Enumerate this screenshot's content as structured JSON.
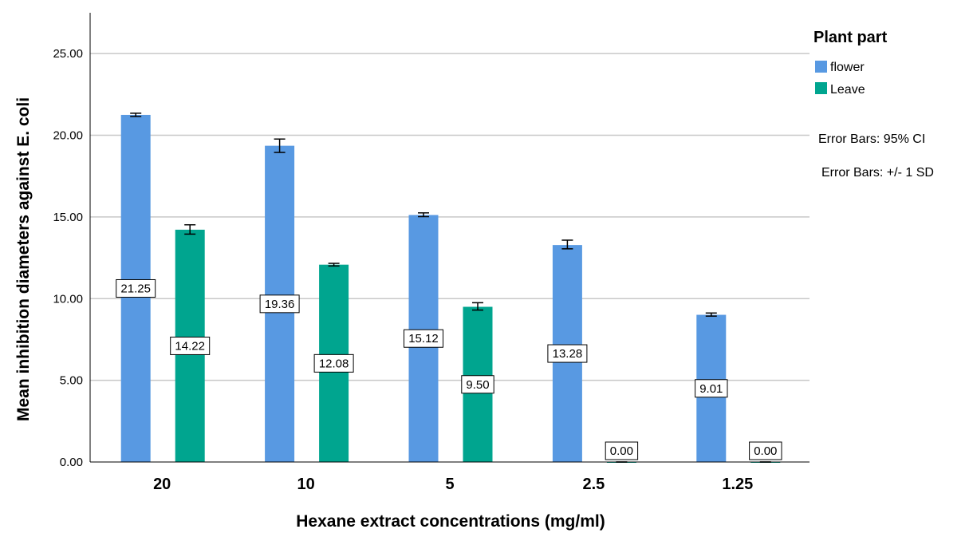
{
  "chart_data": {
    "type": "bar",
    "title": "",
    "xlabel": "Hexane extract concentrations (mg/ml)",
    "ylabel": "Mean inhibition diameters against E. coli",
    "categories": [
      "20",
      "10",
      "5",
      "2.5",
      "1.25"
    ],
    "ylim": [
      0,
      27.5
    ],
    "yticks": [
      "0.00",
      "5.00",
      "10.00",
      "15.00",
      "20.00",
      "25.00"
    ],
    "grid": true,
    "legend": {
      "title": "Plant part",
      "placement": "right",
      "entries": [
        "flower",
        "Leave"
      ]
    },
    "notes": [
      "Error Bars: 95% CI",
      "Error Bars: +/- 1 SD"
    ],
    "series": [
      {
        "name": "flower",
        "color": "#5899e2",
        "values": [
          21.25,
          19.36,
          15.12,
          13.28,
          9.01
        ],
        "labels": [
          "21.25",
          "19.36",
          "15.12",
          "13.28",
          "9.01"
        ],
        "error_low": [
          21.15,
          18.95,
          15.02,
          13.05,
          8.93
        ],
        "error_high": [
          21.35,
          19.77,
          15.25,
          13.58,
          9.12
        ]
      },
      {
        "name": "Leave",
        "color": "#00a58f",
        "values": [
          14.22,
          12.08,
          9.5,
          0.0,
          0.0
        ],
        "labels": [
          "14.22",
          "12.08",
          "9.50",
          "0.00",
          "0.00"
        ],
        "error_low": [
          13.95,
          12.0,
          9.3,
          0.0,
          0.0
        ],
        "error_high": [
          14.52,
          12.16,
          9.75,
          0.0,
          0.0
        ]
      }
    ]
  }
}
